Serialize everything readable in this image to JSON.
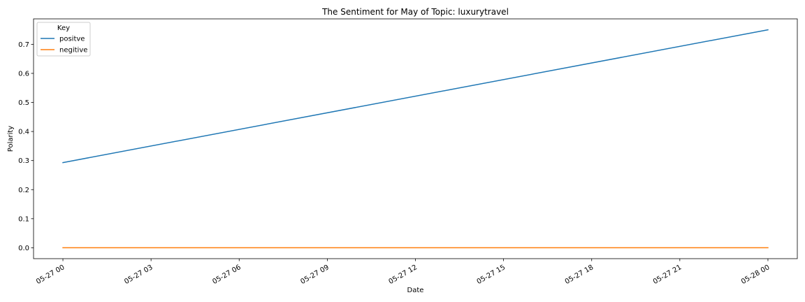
{
  "chart_data": {
    "type": "line",
    "title": "The Sentiment for May of Topic: luxurytravel",
    "xlabel": "Date",
    "ylabel": "Polarity",
    "x": [
      "05-27 00",
      "05-28 00"
    ],
    "x_ticks": [
      "05-27 00",
      "05-27 03",
      "05-27 06",
      "05-27 09",
      "05-27 12",
      "05-27 15",
      "05-27 18",
      "05-27 21",
      "05-28 00"
    ],
    "y_ticks": [
      "0.0",
      "0.1",
      "0.2",
      "0.3",
      "0.4",
      "0.5",
      "0.6",
      "0.7"
    ],
    "xlim": [
      "05-26 23",
      "05-28 01"
    ],
    "ylim": [
      -0.0375,
      0.7875
    ],
    "grid": false,
    "legend": {
      "title": "Key",
      "placement": "top-left"
    },
    "series": [
      {
        "name": "positve",
        "values": [
          0.293,
          0.75
        ],
        "color": "#1f77b4"
      },
      {
        "name": "negitive",
        "values": [
          0.0,
          0.0
        ],
        "color": "#ff7f0e"
      }
    ]
  }
}
